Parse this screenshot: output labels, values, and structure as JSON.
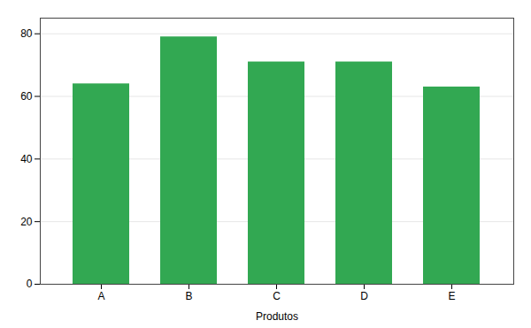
{
  "chart_data": {
    "type": "bar",
    "categories": [
      "A",
      "B",
      "C",
      "D",
      "E"
    ],
    "values": [
      64,
      79,
      71,
      71,
      63
    ],
    "color": "#32a852",
    "xlabel": "Produtos",
    "ylim": [
      0,
      85
    ],
    "yticks": [
      0,
      20,
      40,
      60,
      80
    ],
    "grid": true
  }
}
